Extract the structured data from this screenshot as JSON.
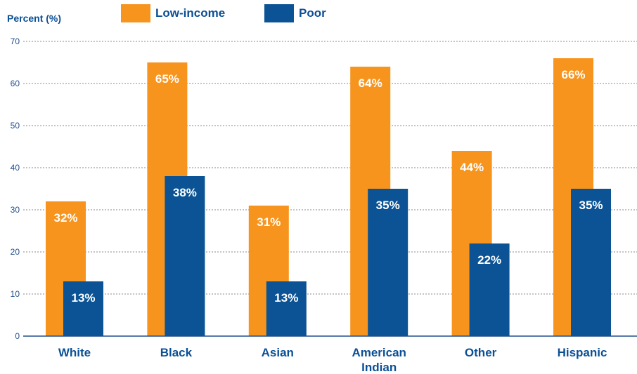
{
  "chart_data": {
    "type": "bar",
    "ylabel": "Percent (%)",
    "ylim": [
      0,
      70
    ],
    "yticks": [
      0,
      10,
      20,
      30,
      40,
      50,
      60,
      70
    ],
    "grid": true,
    "legend_position": "top",
    "categories": [
      [
        "White"
      ],
      [
        "Black"
      ],
      [
        "Asian"
      ],
      [
        "American",
        "Indian"
      ],
      [
        "Other"
      ],
      [
        "Hispanic"
      ]
    ],
    "series": [
      {
        "name": "Low-income",
        "color": "#f7941d",
        "values": [
          32,
          65,
          31,
          64,
          44,
          66
        ],
        "labels": [
          "32%",
          "65%",
          "31%",
          "64%",
          "44%",
          "66%"
        ]
      },
      {
        "name": "Poor",
        "color": "#0b5394",
        "values": [
          13,
          38,
          13,
          35,
          22,
          35
        ],
        "labels": [
          "13%",
          "38%",
          "13%",
          "35%",
          "22%",
          "35%"
        ]
      }
    ]
  }
}
